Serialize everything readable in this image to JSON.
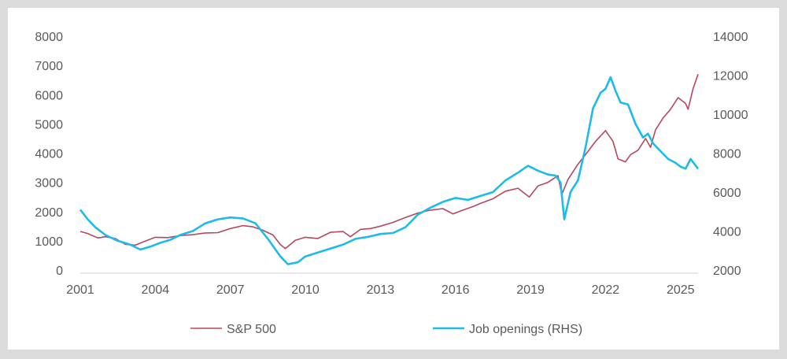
{
  "chart_data": {
    "type": "line",
    "title": "",
    "xlabel": "",
    "ylabel": "",
    "x_ticks": [
      "2001",
      "2004",
      "2007",
      "2010",
      "2013",
      "2016",
      "2019",
      "2022",
      "2025"
    ],
    "xlim": [
      2001,
      2025.7
    ],
    "y_left": {
      "ticks": [
        "8000",
        "7000",
        "6000",
        "5000",
        "4000",
        "3000",
        "2000",
        "1000",
        "0"
      ],
      "range": [
        0,
        8000
      ]
    },
    "y_right": {
      "ticks": [
        "14000",
        "12000",
        "10000",
        "8000",
        "6000",
        "4000",
        "2000"
      ],
      "range": [
        2000,
        14000
      ]
    },
    "legend_position": "bottom",
    "series": [
      {
        "name": "S&P 500",
        "axis": "left",
        "color": "#b5485f",
        "points": [
          [
            2001.0,
            1320
          ],
          [
            2001.3,
            1250
          ],
          [
            2001.7,
            1100
          ],
          [
            2002.0,
            1140
          ],
          [
            2002.4,
            1080
          ],
          [
            2002.8,
            880
          ],
          [
            2003.2,
            850
          ],
          [
            2003.6,
            990
          ],
          [
            2004.0,
            1120
          ],
          [
            2004.5,
            1110
          ],
          [
            2005.0,
            1180
          ],
          [
            2005.5,
            1210
          ],
          [
            2006.0,
            1270
          ],
          [
            2006.5,
            1280
          ],
          [
            2007.0,
            1420
          ],
          [
            2007.5,
            1520
          ],
          [
            2007.9,
            1480
          ],
          [
            2008.3,
            1360
          ],
          [
            2008.7,
            1200
          ],
          [
            2009.0,
            870
          ],
          [
            2009.2,
            735
          ],
          [
            2009.6,
            1020
          ],
          [
            2010.0,
            1120
          ],
          [
            2010.5,
            1080
          ],
          [
            2011.0,
            1290
          ],
          [
            2011.5,
            1320
          ],
          [
            2011.8,
            1140
          ],
          [
            2012.2,
            1390
          ],
          [
            2012.6,
            1420
          ],
          [
            2013.0,
            1500
          ],
          [
            2013.5,
            1630
          ],
          [
            2014.0,
            1800
          ],
          [
            2014.5,
            1950
          ],
          [
            2015.0,
            2050
          ],
          [
            2015.5,
            2100
          ],
          [
            2015.9,
            1920
          ],
          [
            2016.2,
            2020
          ],
          [
            2016.7,
            2170
          ],
          [
            2017.0,
            2280
          ],
          [
            2017.5,
            2440
          ],
          [
            2018.0,
            2700
          ],
          [
            2018.5,
            2800
          ],
          [
            2018.95,
            2500
          ],
          [
            2019.3,
            2880
          ],
          [
            2019.7,
            3000
          ],
          [
            2020.1,
            3230
          ],
          [
            2020.25,
            2580
          ],
          [
            2020.5,
            3100
          ],
          [
            2020.9,
            3620
          ],
          [
            2021.2,
            3950
          ],
          [
            2021.6,
            4400
          ],
          [
            2022.0,
            4770
          ],
          [
            2022.3,
            4400
          ],
          [
            2022.5,
            3800
          ],
          [
            2022.8,
            3700
          ],
          [
            2023.0,
            3950
          ],
          [
            2023.3,
            4100
          ],
          [
            2023.6,
            4500
          ],
          [
            2023.8,
            4200
          ],
          [
            2024.0,
            4800
          ],
          [
            2024.3,
            5200
          ],
          [
            2024.6,
            5500
          ],
          [
            2024.9,
            5900
          ],
          [
            2025.2,
            5700
          ],
          [
            2025.3,
            5500
          ],
          [
            2025.5,
            6200
          ],
          [
            2025.7,
            6700
          ]
        ]
      },
      {
        "name": "Job openings (RHS)",
        "axis": "right",
        "color": "#1ebbe8",
        "points": [
          [
            2001.0,
            5100
          ],
          [
            2001.3,
            4600
          ],
          [
            2001.6,
            4200
          ],
          [
            2002.0,
            3800
          ],
          [
            2002.5,
            3500
          ],
          [
            2003.0,
            3300
          ],
          [
            2003.4,
            3050
          ],
          [
            2003.8,
            3200
          ],
          [
            2004.2,
            3400
          ],
          [
            2004.6,
            3550
          ],
          [
            2005.0,
            3800
          ],
          [
            2005.5,
            4000
          ],
          [
            2006.0,
            4400
          ],
          [
            2006.5,
            4600
          ],
          [
            2007.0,
            4700
          ],
          [
            2007.5,
            4650
          ],
          [
            2008.0,
            4400
          ],
          [
            2008.5,
            3600
          ],
          [
            2009.0,
            2700
          ],
          [
            2009.3,
            2300
          ],
          [
            2009.7,
            2400
          ],
          [
            2010.0,
            2700
          ],
          [
            2010.5,
            2900
          ],
          [
            2011.0,
            3100
          ],
          [
            2011.5,
            3300
          ],
          [
            2012.0,
            3600
          ],
          [
            2012.5,
            3700
          ],
          [
            2013.0,
            3850
          ],
          [
            2013.5,
            3900
          ],
          [
            2014.0,
            4200
          ],
          [
            2014.5,
            4850
          ],
          [
            2015.0,
            5200
          ],
          [
            2015.5,
            5500
          ],
          [
            2016.0,
            5700
          ],
          [
            2016.5,
            5600
          ],
          [
            2017.0,
            5800
          ],
          [
            2017.5,
            6000
          ],
          [
            2018.0,
            6600
          ],
          [
            2018.5,
            7000
          ],
          [
            2018.9,
            7350
          ],
          [
            2019.3,
            7100
          ],
          [
            2019.7,
            6900
          ],
          [
            2020.0,
            6850
          ],
          [
            2020.2,
            6500
          ],
          [
            2020.35,
            4600
          ],
          [
            2020.6,
            6000
          ],
          [
            2020.9,
            6600
          ],
          [
            2021.2,
            8300
          ],
          [
            2021.5,
            10300
          ],
          [
            2021.8,
            11100
          ],
          [
            2022.0,
            11300
          ],
          [
            2022.2,
            11900
          ],
          [
            2022.4,
            11200
          ],
          [
            2022.6,
            10600
          ],
          [
            2022.9,
            10500
          ],
          [
            2023.2,
            9500
          ],
          [
            2023.5,
            8800
          ],
          [
            2023.7,
            9000
          ],
          [
            2023.9,
            8500
          ],
          [
            2024.2,
            8100
          ],
          [
            2024.5,
            7700
          ],
          [
            2024.8,
            7500
          ],
          [
            2025.0,
            7300
          ],
          [
            2025.2,
            7200
          ],
          [
            2025.4,
            7700
          ],
          [
            2025.7,
            7200
          ]
        ]
      }
    ]
  }
}
